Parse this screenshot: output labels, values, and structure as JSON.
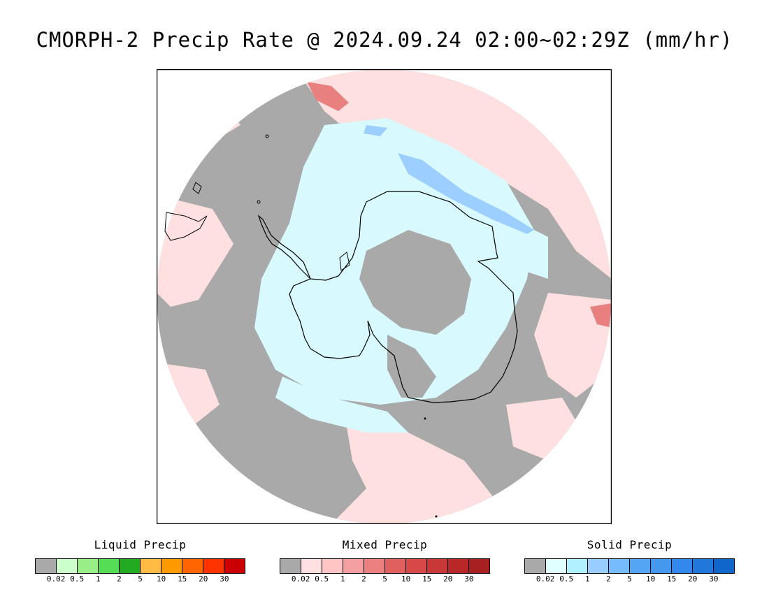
{
  "title": "CMORPH-2 Precip Rate @ 2024.09.24 02:00~02:29Z (mm/hr)",
  "map": {
    "projection": "south-polar-stereographic",
    "ocean_no_precip_color": "#a9a9a9",
    "mixed_light_color": "#fee0e0",
    "solid_light_color": "#d8fafe",
    "coastline_color": "#000000"
  },
  "legends": [
    {
      "title": "Liquid Precip",
      "colors": [
        "#a9a9a9",
        "#ccffcc",
        "#99ee88",
        "#55dd55",
        "#22aa22",
        "#ffbb44",
        "#ff9900",
        "#ff6600",
        "#ff3300",
        "#cc0000"
      ],
      "ticks": [
        "0.02",
        "0.5",
        "1",
        "2",
        "5",
        "10",
        "15",
        "20",
        "30"
      ]
    },
    {
      "title": "Mixed Precip",
      "colors": [
        "#a9a9a9",
        "#ffe0e0",
        "#ffc4c4",
        "#f4a0a0",
        "#ec8080",
        "#e06060",
        "#d84848",
        "#c83838",
        "#b82828",
        "#a82020"
      ],
      "ticks": [
        "0.02",
        "0.5",
        "1",
        "2",
        "5",
        "10",
        "15",
        "20",
        "30"
      ]
    },
    {
      "title": "Solid Precip",
      "colors": [
        "#a9a9a9",
        "#e0ffff",
        "#b0f0ff",
        "#99ccff",
        "#77bbff",
        "#55a5f5",
        "#4499ee",
        "#3388ee",
        "#2277dd",
        "#1166cc"
      ],
      "ticks": [
        "0.02",
        "0.5",
        "1",
        "2",
        "5",
        "10",
        "15",
        "20",
        "30"
      ]
    }
  ]
}
